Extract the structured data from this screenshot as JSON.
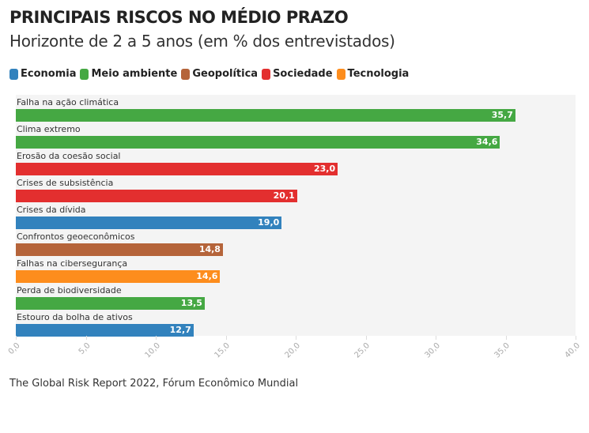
{
  "chart_data": {
    "type": "bar",
    "orientation": "horizontal",
    "title": "PRINCIPAIS RISCOS NO MÉDIO PRAZO",
    "subtitle": "Horizonte de 2 a 5 anos (em % dos entrevistados)",
    "legend": [
      {
        "name": "Economia",
        "color": "#3282bd"
      },
      {
        "name": "Meio ambiente",
        "color": "#45a843"
      },
      {
        "name": "Geopolítica",
        "color": "#b5643a"
      },
      {
        "name": "Sociedade",
        "color": "#e32f2f"
      },
      {
        "name": "Tecnologia",
        "color": "#fd8d1d"
      }
    ],
    "categories": [
      "Falha na ação climática",
      "Clima extremo",
      "Erosão da coesão social",
      "Crises de subsistência",
      "Crises da dívida",
      "Confrontos geoeconômicos",
      "Falhas na cibersegurança",
      "Perda de biodiversidade",
      "Estouro da bolha de ativos"
    ],
    "values": [
      35.7,
      34.6,
      23.0,
      20.1,
      19.0,
      14.8,
      14.6,
      13.5,
      12.7
    ],
    "value_labels": [
      "35,7",
      "34,6",
      "23,0",
      "20,1",
      "19,0",
      "14,8",
      "14,6",
      "13,5",
      "12,7"
    ],
    "groups": [
      "Meio ambiente",
      "Meio ambiente",
      "Sociedade",
      "Sociedade",
      "Economia",
      "Geopolítica",
      "Tecnologia",
      "Meio ambiente",
      "Economia"
    ],
    "xlim": [
      0,
      40
    ],
    "xticks": [
      "0,0",
      "5,0",
      "10,0",
      "15,0",
      "20,0",
      "25,0",
      "30,0",
      "35,0",
      "40,0"
    ],
    "source": "The Global Risk Report 2022, Fórum Econômico Mundial"
  }
}
